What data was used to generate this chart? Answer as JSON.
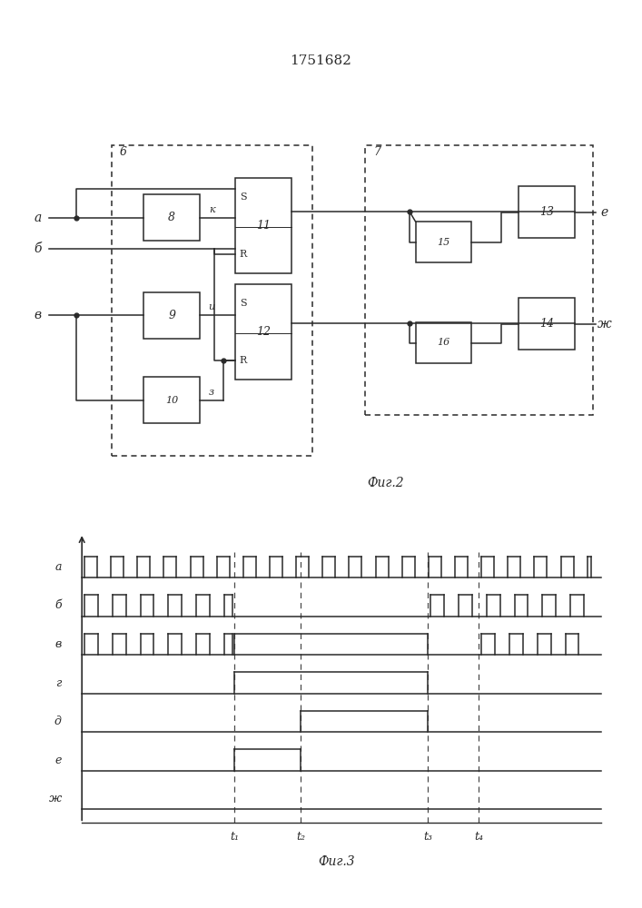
{
  "title": "1751682",
  "fig2_caption": "Фиг.2",
  "fig3_caption": "Фиг.3",
  "bg_color": "#ffffff",
  "line_color": "#2a2a2a",
  "box_color": "#ffffff",
  "t1": 0.3,
  "t2": 0.43,
  "t3": 0.68,
  "t4": 0.78,
  "clock_period": 0.052,
  "clock_duty": 0.5,
  "sig_labels": [
    "а",
    "б",
    "в",
    "г",
    "д",
    "е",
    "ж"
  ],
  "t_labels": [
    "t₁",
    "t₂",
    "t₃",
    "t₄"
  ]
}
